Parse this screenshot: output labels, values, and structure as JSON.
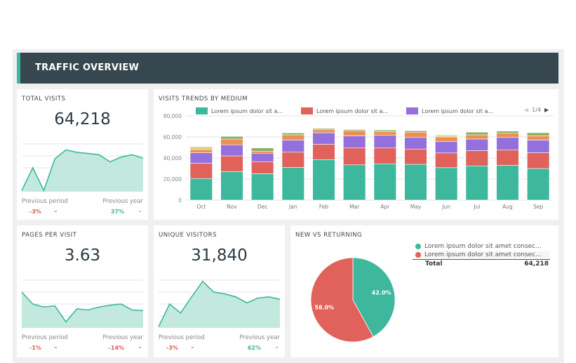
{
  "header": {
    "title": "TRAFFIC OVERVIEW"
  },
  "colors": {
    "accent": "#3db89c",
    "header": "#36474f",
    "negative": "#e05a5a",
    "positive": "#3db89c"
  },
  "total_visits": {
    "title": "TOTAL VISITS",
    "value": "64,218",
    "prev_period_label": "Previous period",
    "prev_period": "-3%",
    "prev_period_icon": "chevron-down-icon",
    "prev_year_label": "Previous year",
    "prev_year": "37%",
    "prev_year_icon": "chevron-up-icon",
    "spark": [
      2,
      40,
      2,
      55,
      70,
      66,
      64,
      62,
      50,
      58,
      62,
      56
    ]
  },
  "pages_per_visit": {
    "title": "PAGES PER VISIT",
    "value": "3.63",
    "prev_period_label": "Previous period",
    "prev_period": "-1%",
    "prev_period_icon": "chevron-down-icon",
    "prev_year_label": "Previous year",
    "prev_year": "-14%",
    "prev_year_icon": "chevron-down-icon",
    "spark": [
      60,
      40,
      35,
      37,
      10,
      32,
      30,
      35,
      38,
      40,
      30,
      29
    ]
  },
  "unique_visitors": {
    "title": "UNIQUE VISITORS",
    "value": "31,840",
    "prev_period_label": "Previous period",
    "prev_period": "-3%",
    "prev_period_icon": "chevron-down-icon",
    "prev_year_label": "Previous year",
    "prev_year": "62%",
    "prev_year_icon": "chevron-up-icon",
    "spark": [
      2,
      40,
      25,
      52,
      78,
      60,
      57,
      52,
      42,
      50,
      52,
      48
    ]
  },
  "chart_data": [
    {
      "type": "bar",
      "stacked": true,
      "title": "VISITS TRENDS BY MEDIUM",
      "categories": [
        "Oct",
        "Nov",
        "Dec",
        "Jan",
        "Feb",
        "Mar",
        "Apr",
        "May",
        "Jun",
        "Jul",
        "Aug",
        "Sep"
      ],
      "ylim": [
        0,
        80000
      ],
      "yticks": [
        "0",
        "20,000",
        "40,000",
        "60,000",
        "80,000"
      ],
      "grid": true,
      "legend_position": "top",
      "legend_page": "1/4",
      "series": [
        {
          "name": "Lorem ipsum dolor sit a...",
          "color": "#3db89c",
          "values": [
            20500,
            27000,
            25000,
            31000,
            38500,
            33500,
            34500,
            34000,
            30800,
            32500,
            33000,
            30000
          ]
        },
        {
          "name": "Lorem ipsum dolor sit a...",
          "color": "#e0625a",
          "values": [
            14500,
            15000,
            11500,
            14500,
            14500,
            16000,
            15000,
            14500,
            14000,
            14500,
            14500,
            15000
          ]
        },
        {
          "name": "Lorem ipsum dolor sit a...",
          "color": "#9370db",
          "values": [
            10000,
            10500,
            8000,
            11500,
            11000,
            11500,
            12000,
            11000,
            10700,
            11000,
            12000,
            12000
          ]
        },
        {
          "color": "#ec8f55",
          "values": [
            3000,
            5500,
            2000,
            5000,
            2800,
            5000,
            3500,
            5000,
            4500,
            4000,
            4000,
            4000
          ]
        },
        {
          "color": "#e8c25a",
          "values": [
            1500,
            0,
            0,
            0,
            0,
            0,
            0,
            0,
            1000,
            0,
            0,
            0
          ]
        },
        {
          "color": "#8fae5e",
          "values": [
            1000,
            2500,
            3000,
            1800,
            1200,
            1000,
            1500,
            1300,
            800,
            2500,
            2000,
            3000
          ]
        }
      ]
    },
    {
      "type": "pie",
      "title": "NEW VS RETURNING",
      "total_label": "Total",
      "total": "64,218",
      "slices": [
        {
          "name": "Lorem ipsum dolor sit amet consec...",
          "value": 42.0,
          "label": "42.0%",
          "color": "#3db89c"
        },
        {
          "name": "Lorem ipsum dolor sit amet consec...",
          "value": 58.0,
          "label": "58.0%",
          "color": "#e0625a"
        }
      ]
    }
  ]
}
